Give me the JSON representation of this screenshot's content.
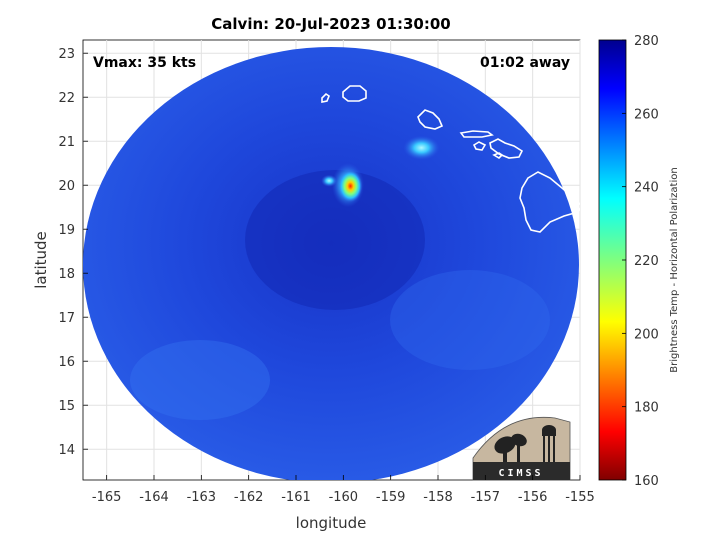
{
  "title": "Calvin: 20-Jul-2023 01:30:00",
  "vmax_label": "Vmax: 35 kts",
  "time_away_label": "01:02 away",
  "logo_text": "CIMSS",
  "x_axis": {
    "label": "longitude",
    "range": [
      -165.5,
      -155
    ],
    "ticks": [
      -165,
      -164,
      -163,
      -162,
      -161,
      -160,
      -159,
      -158,
      -157,
      -156,
      -155
    ]
  },
  "y_axis": {
    "label": "latitude",
    "range": [
      13.3,
      23.3
    ],
    "ticks": [
      14,
      15,
      16,
      17,
      18,
      19,
      20,
      21,
      22,
      23
    ]
  },
  "colorbar": {
    "label": "Brightness Temp - Horizontal Polarization",
    "range": [
      160,
      280
    ],
    "ticks": [
      160,
      180,
      200,
      220,
      240,
      260,
      280
    ],
    "colormap": "jet"
  },
  "swath": {
    "center": [
      -160.2,
      18.3
    ],
    "background_temp": 262
  },
  "features": [
    {
      "name": "core",
      "lon": -159.85,
      "lat": 19.98,
      "temp": 200
    },
    {
      "name": "core-ring",
      "lon": -159.9,
      "lat": 20.0,
      "temp": 232
    },
    {
      "name": "band-west",
      "lon": -160.3,
      "lat": 20.1,
      "temp": 240
    },
    {
      "name": "band-east",
      "lon": -158.35,
      "lat": 20.85,
      "temp": 238
    }
  ],
  "colors": {
    "swath_base": "#1f4fe0",
    "grid": "#e2e2e2",
    "coast": "#ffffff"
  }
}
